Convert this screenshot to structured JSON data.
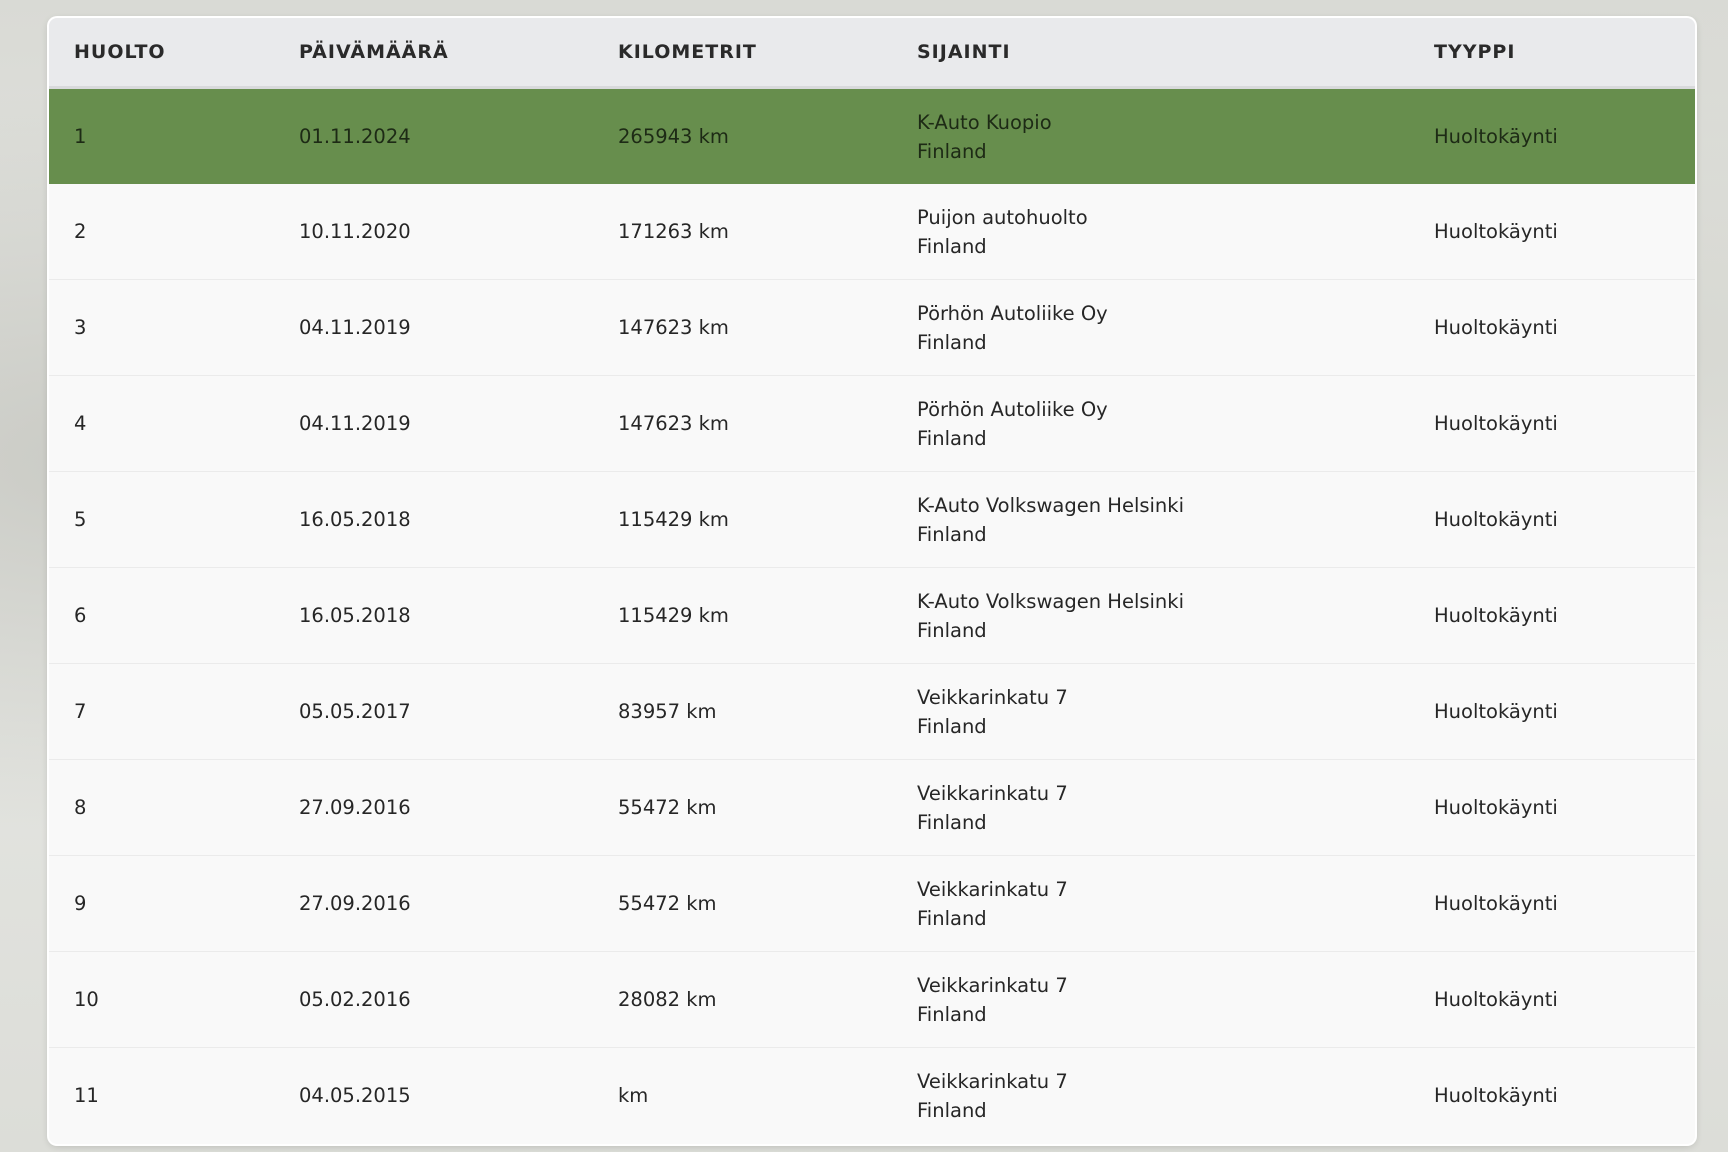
{
  "colors": {
    "active_row": "#678e4d",
    "header_bg": "#e9eaec"
  },
  "table": {
    "headers": [
      "HUOLTO",
      "PÄIVÄMÄÄRÄ",
      "KILOMETRIT",
      "SIJAINTI",
      "TYYPPI"
    ],
    "rows": [
      {
        "no": "1",
        "date": "01.11.2024",
        "km": "265943 km",
        "loc1": "K-Auto Kuopio",
        "loc2": "Finland",
        "type": "Huoltokäynti",
        "active": true
      },
      {
        "no": "2",
        "date": "10.11.2020",
        "km": "171263 km",
        "loc1": "Puijon autohuolto",
        "loc2": "Finland",
        "type": "Huoltokäynti"
      },
      {
        "no": "3",
        "date": "04.11.2019",
        "km": "147623 km",
        "loc1": "Pörhön Autoliike Oy",
        "loc2": "Finland",
        "type": "Huoltokäynti"
      },
      {
        "no": "4",
        "date": "04.11.2019",
        "km": "147623 km",
        "loc1": "Pörhön Autoliike Oy",
        "loc2": "Finland",
        "type": "Huoltokäynti"
      },
      {
        "no": "5",
        "date": "16.05.2018",
        "km": "115429 km",
        "loc1": "K-Auto Volkswagen Helsinki",
        "loc2": "Finland",
        "type": "Huoltokäynti"
      },
      {
        "no": "6",
        "date": "16.05.2018",
        "km": "115429 km",
        "loc1": "K-Auto Volkswagen Helsinki",
        "loc2": "Finland",
        "type": "Huoltokäynti"
      },
      {
        "no": "7",
        "date": "05.05.2017",
        "km": "83957 km",
        "loc1": "Veikkarinkatu 7",
        "loc2": "Finland",
        "type": "Huoltokäynti"
      },
      {
        "no": "8",
        "date": "27.09.2016",
        "km": "55472 km",
        "loc1": "Veikkarinkatu 7",
        "loc2": "Finland",
        "type": "Huoltokäynti"
      },
      {
        "no": "9",
        "date": "27.09.2016",
        "km": "55472 km",
        "loc1": "Veikkarinkatu 7",
        "loc2": "Finland",
        "type": "Huoltokäynti"
      },
      {
        "no": "10",
        "date": "05.02.2016",
        "km": "28082 km",
        "loc1": "Veikkarinkatu 7",
        "loc2": "Finland",
        "type": "Huoltokäynti"
      },
      {
        "no": "11",
        "date": "04.05.2015",
        "km": "km",
        "loc1": "Veikkarinkatu 7",
        "loc2": "Finland",
        "type": "Huoltokäynti"
      }
    ]
  }
}
